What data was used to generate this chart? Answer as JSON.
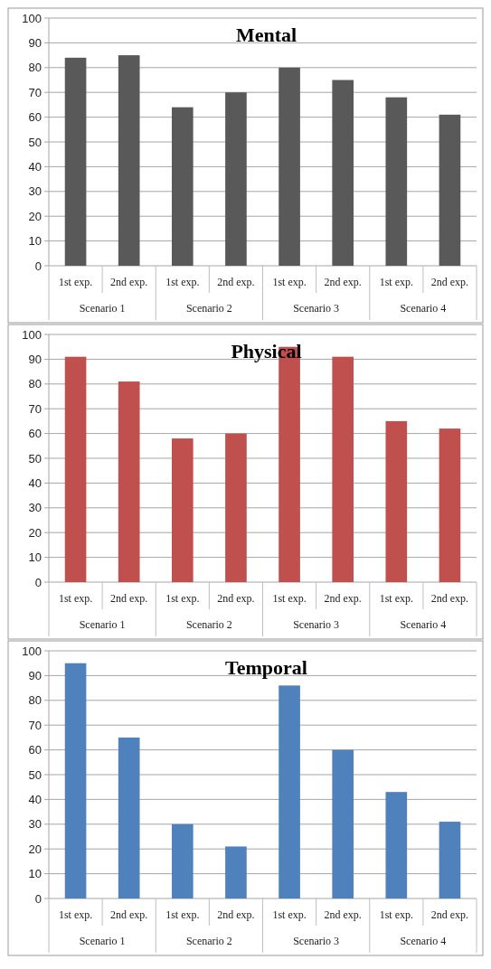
{
  "chart_data": [
    {
      "type": "bar",
      "title": "Mental",
      "categories": [
        "1st exp.",
        "2nd exp.",
        "1st exp.",
        "2nd exp.",
        "1st exp.",
        "2nd exp.",
        "1st exp.",
        "2nd exp."
      ],
      "values": [
        84,
        85,
        64,
        70,
        80,
        75,
        68,
        61
      ],
      "color": "#595959",
      "ylim": [
        0,
        100
      ],
      "yticks": [
        0,
        10,
        20,
        30,
        40,
        50,
        60,
        70,
        80,
        90,
        100
      ],
      "grid": "y",
      "annotations": [
        "Scenario 1",
        "Scenario 2",
        "Scenario 3",
        "Scenario 4"
      ]
    },
    {
      "type": "bar",
      "title": "Physical",
      "categories": [
        "1st exp.",
        "2nd exp.",
        "1st exp.",
        "2nd exp.",
        "1st exp.",
        "2nd exp.",
        "1st exp.",
        "2nd exp."
      ],
      "values": [
        91,
        81,
        58,
        60,
        95,
        91,
        65,
        62
      ],
      "color": "#c0504d",
      "ylim": [
        0,
        100
      ],
      "yticks": [
        0,
        10,
        20,
        30,
        40,
        50,
        60,
        70,
        80,
        90,
        100
      ],
      "grid": "y",
      "annotations": [
        "Scenario 1",
        "Scenario 2",
        "Scenario 3",
        "Scenario 4"
      ]
    },
    {
      "type": "bar",
      "title": "Temporal",
      "categories": [
        "1st exp.",
        "2nd exp.",
        "1st exp.",
        "2nd exp.",
        "1st exp.",
        "2nd exp.",
        "1st exp.",
        "2nd exp."
      ],
      "values": [
        95,
        65,
        30,
        21,
        86,
        60,
        43,
        31
      ],
      "color": "#4f81bd",
      "ylim": [
        0,
        100
      ],
      "yticks": [
        0,
        10,
        20,
        30,
        40,
        50,
        60,
        70,
        80,
        90,
        100
      ],
      "grid": "y",
      "annotations": [
        "Scenario 1",
        "Scenario 2",
        "Scenario 3",
        "Scenario 4"
      ]
    }
  ]
}
